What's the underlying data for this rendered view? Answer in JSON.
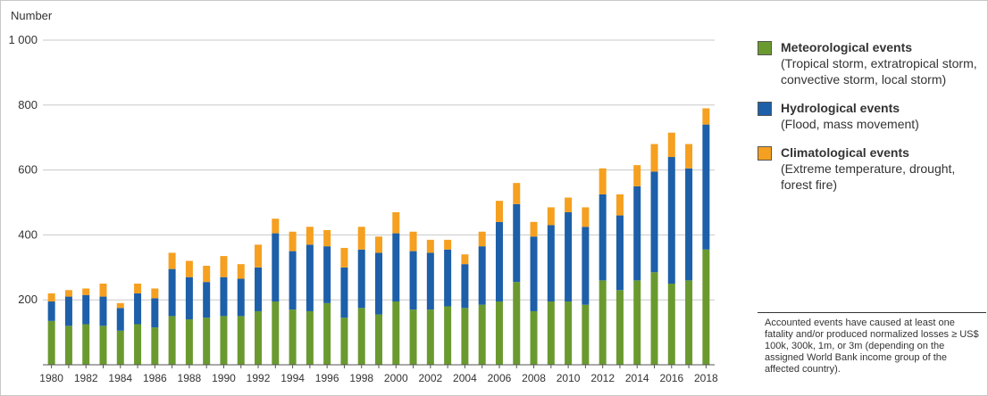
{
  "chart_data": {
    "type": "bar",
    "stacked": true,
    "title": "",
    "ylabel": "Number",
    "xlabel": "",
    "ylim": [
      0,
      1000
    ],
    "yticks": [
      200,
      400,
      600,
      800,
      1000
    ],
    "ytick_labels": [
      "200",
      "400",
      "600",
      "800",
      "1 000"
    ],
    "grid": true,
    "legend_position": "right",
    "categories": [
      "1980",
      "1981",
      "1982",
      "1983",
      "1984",
      "1985",
      "1986",
      "1987",
      "1988",
      "1989",
      "1990",
      "1991",
      "1992",
      "1993",
      "1994",
      "1995",
      "1996",
      "1997",
      "1998",
      "1999",
      "2000",
      "2001",
      "2002",
      "2003",
      "2004",
      "2005",
      "2006",
      "2007",
      "2008",
      "2009",
      "2010",
      "2011",
      "2012",
      "2013",
      "2014",
      "2015",
      "2016",
      "2017",
      "2018"
    ],
    "xtick_labels": [
      "1980",
      "",
      "1982",
      "",
      "1984",
      "",
      "1986",
      "",
      "1988",
      "",
      "1990",
      "",
      "1992",
      "",
      "1994",
      "",
      "1996",
      "",
      "1998",
      "",
      "2000",
      "",
      "2002",
      "",
      "2004",
      "",
      "2006",
      "",
      "2008",
      "",
      "2010",
      "",
      "2012",
      "",
      "2014",
      "",
      "2016",
      "",
      "2018"
    ],
    "series": [
      {
        "name": "Meteorological events",
        "description": "(Tropical storm, extratropical storm, convective storm, local storm)",
        "color": "#6a9a2f",
        "values": [
          135,
          120,
          125,
          120,
          105,
          125,
          115,
          150,
          140,
          145,
          150,
          150,
          165,
          195,
          170,
          165,
          190,
          145,
          175,
          155,
          195,
          170,
          170,
          180,
          175,
          185,
          195,
          255,
          165,
          195,
          195,
          185,
          260,
          230,
          260,
          285,
          250,
          260,
          355
        ]
      },
      {
        "name": "Hydrological events",
        "description": "(Flood, mass movement)",
        "color": "#1d5fa8",
        "values": [
          60,
          90,
          90,
          90,
          70,
          95,
          90,
          145,
          130,
          110,
          120,
          115,
          135,
          210,
          180,
          205,
          175,
          155,
          180,
          190,
          210,
          180,
          175,
          175,
          135,
          180,
          245,
          240,
          230,
          235,
          275,
          240,
          265,
          230,
          290,
          310,
          390,
          345,
          385
        ]
      },
      {
        "name": "Climatological events",
        "description": "(Extreme temperature, drought, forest fire)",
        "color": "#f5a020",
        "values": [
          25,
          20,
          20,
          40,
          15,
          30,
          30,
          50,
          50,
          50,
          65,
          45,
          70,
          45,
          60,
          55,
          50,
          60,
          70,
          50,
          65,
          60,
          40,
          30,
          30,
          45,
          65,
          65,
          45,
          55,
          45,
          60,
          80,
          65,
          65,
          85,
          75,
          75,
          50
        ]
      }
    ],
    "footnote": "Accounted events have caused at least one fatality and/or produced normalized losses ≥ US$ 100k, 300k, 1m, or 3m (depending on the assigned World Bank income group of the affected country)."
  }
}
